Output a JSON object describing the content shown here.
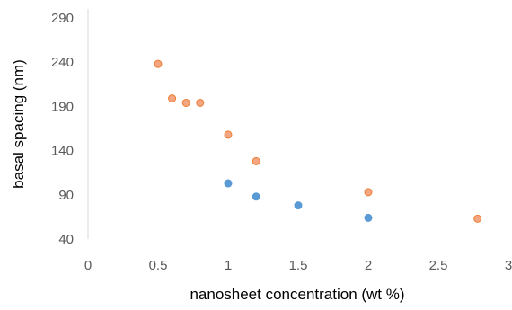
{
  "chart_data": {
    "type": "scatter",
    "title": "",
    "xlabel": "nanosheet concentration (wt %)",
    "ylabel": "basal spacing (nm)",
    "xlim": [
      0,
      3
    ],
    "ylim": [
      40,
      290
    ],
    "x_ticks": [
      "0",
      "0.5",
      "1",
      "1.5",
      "2",
      "2.5",
      "3"
    ],
    "y_ticks": [
      "40",
      "90",
      "140",
      "190",
      "240",
      "290"
    ],
    "grid": false,
    "legend": "none",
    "series": [
      {
        "color": "#f4a582",
        "stroke": "#ed7d31",
        "x": [
          0.5,
          0.6,
          0.7,
          0.8,
          1.0,
          1.2,
          2.0,
          2.78
        ],
        "y": [
          238,
          199,
          194,
          194,
          158,
          128,
          93,
          63
        ]
      },
      {
        "color": "#5b9bd5",
        "stroke": "#5b9bd5",
        "x": [
          1.0,
          1.2,
          1.5,
          2.0
        ],
        "y": [
          103,
          88,
          78,
          64
        ]
      }
    ]
  }
}
